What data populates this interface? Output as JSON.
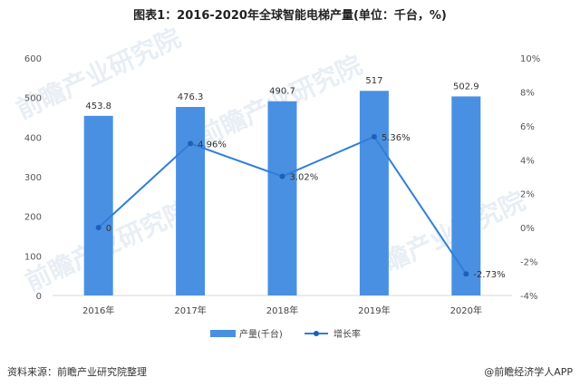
{
  "chart_data": {
    "type": "bar",
    "title": "图表1：2016-2020年全球智能电梯产量(单位：千台，%)",
    "categories": [
      "2016年",
      "2017年",
      "2018年",
      "2019年",
      "2020年"
    ],
    "series": [
      {
        "name": "产量(千台)",
        "type": "bar",
        "axis": "left",
        "color": "#4a90e2",
        "values": [
          453.8,
          476.3,
          490.7,
          517,
          502.9
        ],
        "labels": [
          "453.8",
          "476.3",
          "490.7",
          "517",
          "502.9"
        ]
      },
      {
        "name": "增长率",
        "type": "line",
        "axis": "right",
        "color": "#2f7ed8",
        "values": [
          0,
          4.96,
          3.02,
          5.36,
          -2.73
        ],
        "labels": [
          "0",
          "4.96%",
          "3.02%",
          "5.36%",
          "-2.73%"
        ]
      }
    ],
    "ylim_left": [
      0,
      600
    ],
    "yticks_left": [
      "0",
      "100",
      "200",
      "300",
      "400",
      "500",
      "600"
    ],
    "ylim_right": [
      -4,
      10
    ],
    "yticks_right": [
      "-4%",
      "-2%",
      "0%",
      "2%",
      "4%",
      "6%",
      "8%",
      "10%"
    ],
    "grid": false,
    "legend_position": "bottom"
  },
  "footer": {
    "source": "资料来源：前瞻产业研究院整理",
    "brand": "@前瞻经济学人APP"
  },
  "watermark": "前瞻产业研究院"
}
